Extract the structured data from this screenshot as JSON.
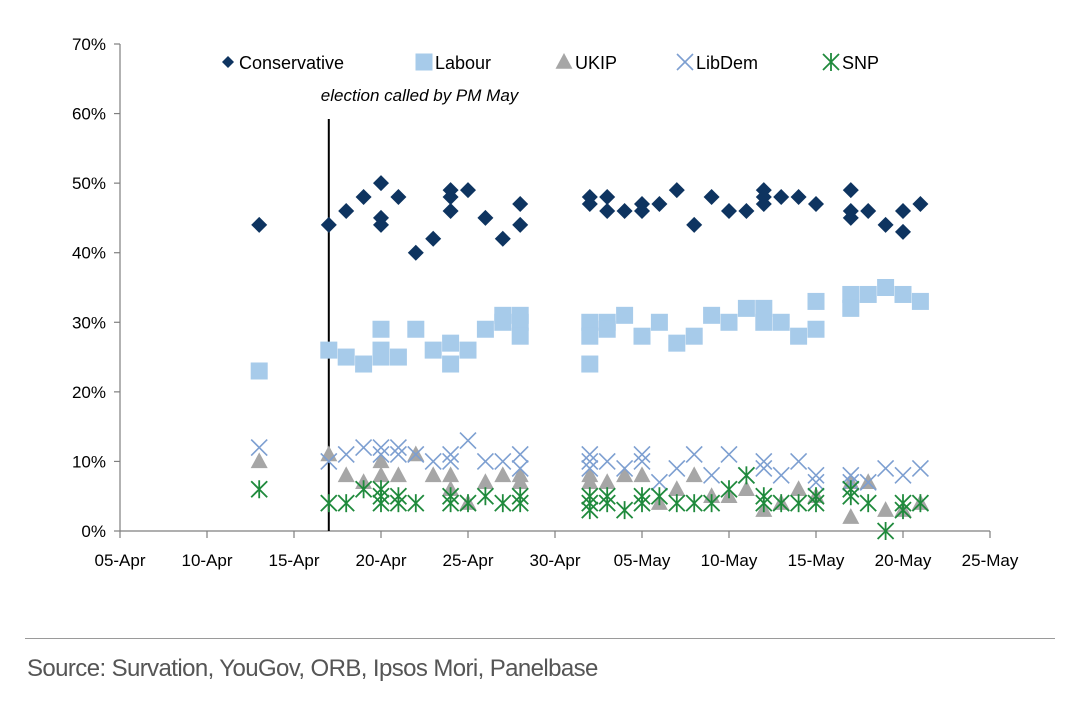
{
  "chart_data": {
    "type": "scatter",
    "title": "",
    "xlabel": "",
    "ylabel": "",
    "x_ticks": [
      "05-Apr",
      "10-Apr",
      "15-Apr",
      "20-Apr",
      "25-Apr",
      "30-Apr",
      "05-May",
      "10-May",
      "15-May",
      "20-May",
      "25-May"
    ],
    "y_ticks": [
      "0%",
      "10%",
      "20%",
      "30%",
      "40%",
      "50%",
      "60%",
      "70%"
    ],
    "xlim": [
      "2017-04-05",
      "2017-05-25"
    ],
    "ylim": [
      0,
      70
    ],
    "grid": false,
    "legend_position": "top",
    "annotations": [
      {
        "type": "vline",
        "x": "2017-04-17",
        "text": "election called by PM May"
      }
    ],
    "series": [
      {
        "name": "Conservative",
        "marker": "diamond",
        "color": "#0e3460",
        "points": [
          [
            "2017-04-13",
            44
          ],
          [
            "2017-04-17",
            44
          ],
          [
            "2017-04-18",
            46
          ],
          [
            "2017-04-19",
            48
          ],
          [
            "2017-04-20",
            50
          ],
          [
            "2017-04-20",
            45
          ],
          [
            "2017-04-20",
            44
          ],
          [
            "2017-04-21",
            48
          ],
          [
            "2017-04-22",
            40
          ],
          [
            "2017-04-23",
            42
          ],
          [
            "2017-04-24",
            49
          ],
          [
            "2017-04-24",
            48
          ],
          [
            "2017-04-24",
            46
          ],
          [
            "2017-04-25",
            49
          ],
          [
            "2017-04-26",
            45
          ],
          [
            "2017-04-27",
            42
          ],
          [
            "2017-04-28",
            47
          ],
          [
            "2017-04-28",
            44
          ],
          [
            "2017-05-02",
            48
          ],
          [
            "2017-05-02",
            47
          ],
          [
            "2017-05-03",
            48
          ],
          [
            "2017-05-03",
            46
          ],
          [
            "2017-05-04",
            46
          ],
          [
            "2017-05-05",
            47
          ],
          [
            "2017-05-05",
            46
          ],
          [
            "2017-05-06",
            47
          ],
          [
            "2017-05-07",
            49
          ],
          [
            "2017-05-08",
            44
          ],
          [
            "2017-05-09",
            48
          ],
          [
            "2017-05-10",
            46
          ],
          [
            "2017-05-11",
            46
          ],
          [
            "2017-05-12",
            49
          ],
          [
            "2017-05-12",
            48
          ],
          [
            "2017-05-12",
            47
          ],
          [
            "2017-05-13",
            48
          ],
          [
            "2017-05-14",
            48
          ],
          [
            "2017-05-15",
            47
          ],
          [
            "2017-05-17",
            49
          ],
          [
            "2017-05-17",
            46
          ],
          [
            "2017-05-17",
            45
          ],
          [
            "2017-05-18",
            46
          ],
          [
            "2017-05-19",
            44
          ],
          [
            "2017-05-20",
            46
          ],
          [
            "2017-05-20",
            43
          ],
          [
            "2017-05-21",
            47
          ]
        ]
      },
      {
        "name": "Labour",
        "marker": "square",
        "color": "#a7cbea",
        "points": [
          [
            "2017-04-13",
            23
          ],
          [
            "2017-04-17",
            26
          ],
          [
            "2017-04-18",
            25
          ],
          [
            "2017-04-19",
            24
          ],
          [
            "2017-04-20",
            29
          ],
          [
            "2017-04-20",
            26
          ],
          [
            "2017-04-20",
            25
          ],
          [
            "2017-04-21",
            25
          ],
          [
            "2017-04-22",
            29
          ],
          [
            "2017-04-23",
            26
          ],
          [
            "2017-04-24",
            27
          ],
          [
            "2017-04-24",
            24
          ],
          [
            "2017-04-25",
            26
          ],
          [
            "2017-04-26",
            29
          ],
          [
            "2017-04-27",
            31
          ],
          [
            "2017-04-27",
            30
          ],
          [
            "2017-04-28",
            31
          ],
          [
            "2017-04-28",
            30
          ],
          [
            "2017-04-28",
            28
          ],
          [
            "2017-05-02",
            30
          ],
          [
            "2017-05-02",
            28
          ],
          [
            "2017-05-02",
            24
          ],
          [
            "2017-05-03",
            30
          ],
          [
            "2017-05-03",
            29
          ],
          [
            "2017-05-04",
            31
          ],
          [
            "2017-05-05",
            28
          ],
          [
            "2017-05-06",
            30
          ],
          [
            "2017-05-07",
            27
          ],
          [
            "2017-05-08",
            28
          ],
          [
            "2017-05-09",
            31
          ],
          [
            "2017-05-10",
            30
          ],
          [
            "2017-05-11",
            32
          ],
          [
            "2017-05-12",
            32
          ],
          [
            "2017-05-12",
            30
          ],
          [
            "2017-05-13",
            30
          ],
          [
            "2017-05-14",
            28
          ],
          [
            "2017-05-15",
            33
          ],
          [
            "2017-05-15",
            29
          ],
          [
            "2017-05-17",
            34
          ],
          [
            "2017-05-17",
            32
          ],
          [
            "2017-05-18",
            34
          ],
          [
            "2017-05-19",
            35
          ],
          [
            "2017-05-20",
            34
          ],
          [
            "2017-05-21",
            33
          ]
        ]
      },
      {
        "name": "UKIP",
        "marker": "triangle",
        "color": "#a6a6a6",
        "points": [
          [
            "2017-04-13",
            10
          ],
          [
            "2017-04-17",
            11
          ],
          [
            "2017-04-18",
            8
          ],
          [
            "2017-04-19",
            7
          ],
          [
            "2017-04-20",
            10
          ],
          [
            "2017-04-20",
            8
          ],
          [
            "2017-04-21",
            8
          ],
          [
            "2017-04-22",
            11
          ],
          [
            "2017-04-23",
            8
          ],
          [
            "2017-04-24",
            8
          ],
          [
            "2017-04-24",
            6
          ],
          [
            "2017-04-25",
            4
          ],
          [
            "2017-04-26",
            7
          ],
          [
            "2017-04-27",
            8
          ],
          [
            "2017-04-28",
            8
          ],
          [
            "2017-04-28",
            7
          ],
          [
            "2017-05-02",
            8
          ],
          [
            "2017-05-02",
            7
          ],
          [
            "2017-05-03",
            7
          ],
          [
            "2017-05-04",
            8
          ],
          [
            "2017-05-05",
            8
          ],
          [
            "2017-05-06",
            4
          ],
          [
            "2017-05-07",
            6
          ],
          [
            "2017-05-08",
            8
          ],
          [
            "2017-05-09",
            5
          ],
          [
            "2017-05-10",
            5
          ],
          [
            "2017-05-11",
            6
          ],
          [
            "2017-05-12",
            3
          ],
          [
            "2017-05-13",
            4
          ],
          [
            "2017-05-14",
            6
          ],
          [
            "2017-05-15",
            5
          ],
          [
            "2017-05-17",
            7
          ],
          [
            "2017-05-17",
            2
          ],
          [
            "2017-05-18",
            7
          ],
          [
            "2017-05-19",
            3
          ],
          [
            "2017-05-20",
            3
          ],
          [
            "2017-05-21",
            4
          ]
        ]
      },
      {
        "name": "LibDem",
        "marker": "x",
        "color": "#7d9fd1",
        "points": [
          [
            "2017-04-13",
            12
          ],
          [
            "2017-04-17",
            10
          ],
          [
            "2017-04-18",
            11
          ],
          [
            "2017-04-19",
            12
          ],
          [
            "2017-04-20",
            12
          ],
          [
            "2017-04-20",
            11
          ],
          [
            "2017-04-21",
            12
          ],
          [
            "2017-04-21",
            11
          ],
          [
            "2017-04-22",
            11
          ],
          [
            "2017-04-23",
            10
          ],
          [
            "2017-04-24",
            11
          ],
          [
            "2017-04-24",
            10
          ],
          [
            "2017-04-25",
            13
          ],
          [
            "2017-04-26",
            10
          ],
          [
            "2017-04-27",
            10
          ],
          [
            "2017-04-28",
            11
          ],
          [
            "2017-04-28",
            9
          ],
          [
            "2017-05-02",
            11
          ],
          [
            "2017-05-02",
            10
          ],
          [
            "2017-05-02",
            9
          ],
          [
            "2017-05-03",
            10
          ],
          [
            "2017-05-04",
            9
          ],
          [
            "2017-05-05",
            11
          ],
          [
            "2017-05-05",
            10
          ],
          [
            "2017-05-06",
            7
          ],
          [
            "2017-05-07",
            9
          ],
          [
            "2017-05-08",
            11
          ],
          [
            "2017-05-09",
            8
          ],
          [
            "2017-05-10",
            11
          ],
          [
            "2017-05-11",
            8
          ],
          [
            "2017-05-12",
            10
          ],
          [
            "2017-05-12",
            9
          ],
          [
            "2017-05-13",
            8
          ],
          [
            "2017-05-14",
            10
          ],
          [
            "2017-05-15",
            8
          ],
          [
            "2017-05-15",
            7
          ],
          [
            "2017-05-17",
            8
          ],
          [
            "2017-05-17",
            7
          ],
          [
            "2017-05-18",
            7
          ],
          [
            "2017-05-19",
            9
          ],
          [
            "2017-05-20",
            8
          ],
          [
            "2017-05-21",
            9
          ]
        ]
      },
      {
        "name": "SNP",
        "marker": "star",
        "color": "#1f8a3c",
        "points": [
          [
            "2017-04-13",
            6
          ],
          [
            "2017-04-17",
            4
          ],
          [
            "2017-04-18",
            4
          ],
          [
            "2017-04-19",
            6
          ],
          [
            "2017-04-20",
            6
          ],
          [
            "2017-04-20",
            5
          ],
          [
            "2017-04-20",
            4
          ],
          [
            "2017-04-21",
            5
          ],
          [
            "2017-04-21",
            4
          ],
          [
            "2017-04-22",
            4
          ],
          [
            "2017-04-24",
            5
          ],
          [
            "2017-04-24",
            4
          ],
          [
            "2017-04-25",
            4
          ],
          [
            "2017-04-26",
            5
          ],
          [
            "2017-04-27",
            4
          ],
          [
            "2017-04-28",
            5
          ],
          [
            "2017-04-28",
            4
          ],
          [
            "2017-05-02",
            5
          ],
          [
            "2017-05-02",
            4
          ],
          [
            "2017-05-02",
            3
          ],
          [
            "2017-05-03",
            5
          ],
          [
            "2017-05-03",
            4
          ],
          [
            "2017-05-04",
            3
          ],
          [
            "2017-05-05",
            5
          ],
          [
            "2017-05-05",
            4
          ],
          [
            "2017-05-06",
            5
          ],
          [
            "2017-05-07",
            4
          ],
          [
            "2017-05-08",
            4
          ],
          [
            "2017-05-09",
            4
          ],
          [
            "2017-05-10",
            6
          ],
          [
            "2017-05-11",
            8
          ],
          [
            "2017-05-12",
            5
          ],
          [
            "2017-05-12",
            4
          ],
          [
            "2017-05-13",
            4
          ],
          [
            "2017-05-14",
            4
          ],
          [
            "2017-05-15",
            5
          ],
          [
            "2017-05-15",
            4
          ],
          [
            "2017-05-17",
            6
          ],
          [
            "2017-05-17",
            5
          ],
          [
            "2017-05-18",
            4
          ],
          [
            "2017-05-19",
            0
          ],
          [
            "2017-05-20",
            4
          ],
          [
            "2017-05-20",
            3
          ],
          [
            "2017-05-21",
            4
          ]
        ]
      }
    ]
  },
  "source": {
    "text": "Source: Survation, YouGov, ORB, Ipsos Mori, Panelbase"
  }
}
